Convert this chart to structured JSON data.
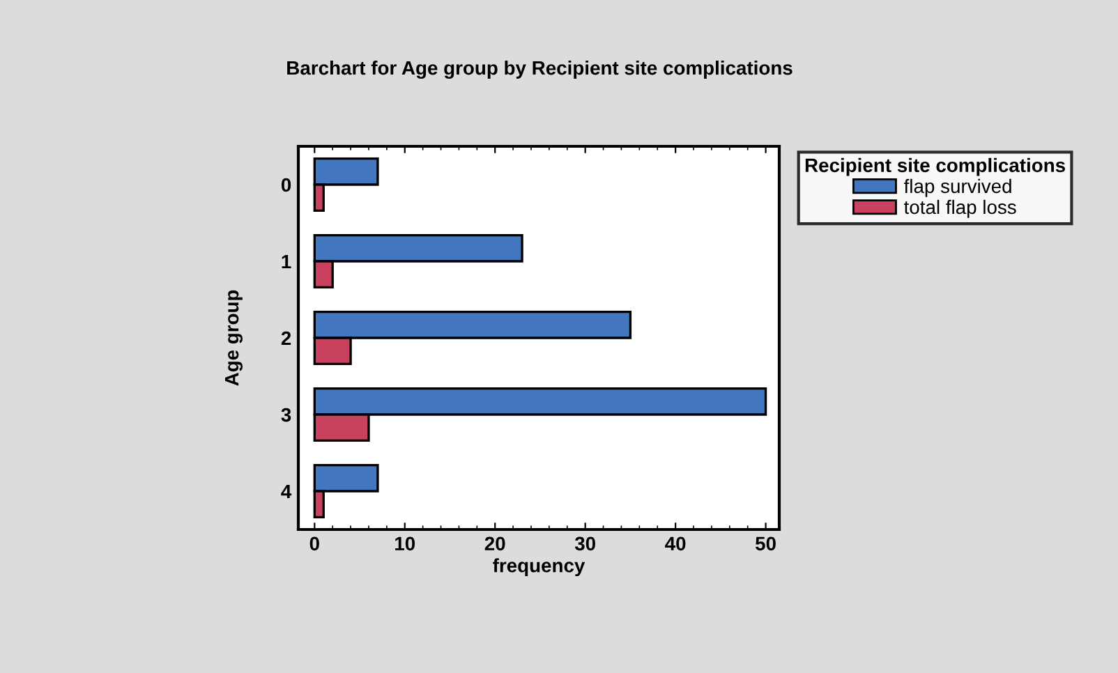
{
  "chart_data": {
    "type": "bar",
    "orientation": "horizontal",
    "title": "Barchart for Age group by Recipient site complications",
    "xlabel": "frequency",
    "ylabel": "Age group",
    "legend_title": "Recipient site complications",
    "legend": "top right",
    "categories": [
      "0",
      "1",
      "2",
      "3",
      "4"
    ],
    "series": [
      {
        "name": "flap survived",
        "color": "#4277bf",
        "values": [
          7,
          23,
          35,
          50,
          7
        ]
      },
      {
        "name": "total flap loss",
        "color": "#c9415f",
        "values": [
          1,
          2,
          4,
          6,
          1
        ]
      }
    ],
    "xlim": [
      -1.8,
      51.5
    ],
    "xticks": [
      0,
      10,
      20,
      30,
      40,
      50
    ],
    "grid": false
  }
}
